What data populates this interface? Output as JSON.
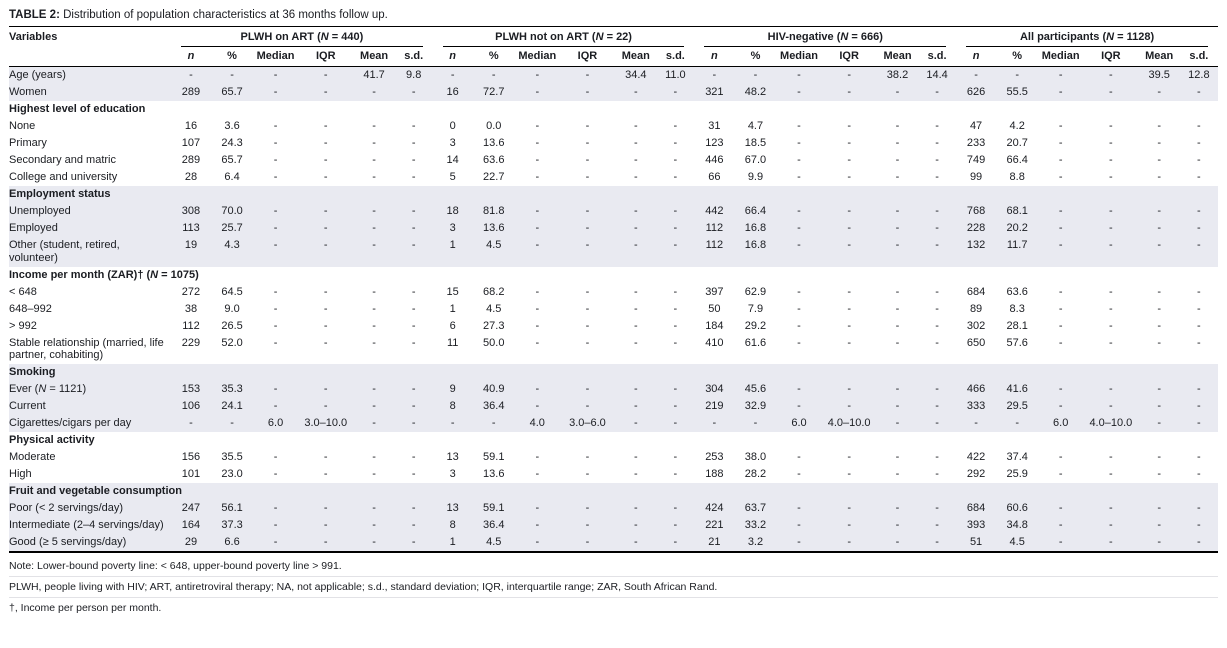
{
  "title_label": "TABLE 2:",
  "title_text": " Distribution of population characteristics at 36 months follow up.",
  "table": {
    "variables_header": "Variables",
    "groups": [
      "PLWH on ART (N = 440)",
      "PLWH not on ART (N = 22)",
      "HIV-negative (N = 666)",
      "All participants (N = 1128)"
    ],
    "subheaders": [
      "n",
      "%",
      "Median",
      "IQR",
      "Mean",
      "s.d."
    ],
    "rows": [
      {
        "type": "data",
        "shaded": true,
        "label": "Age (years)",
        "values": [
          "-",
          "-",
          "-",
          "-",
          "41.7",
          "9.8",
          "-",
          "-",
          "-",
          "-",
          "34.4",
          "11.0",
          "-",
          "-",
          "-",
          "-",
          "38.2",
          "14.4",
          "-",
          "-",
          "-",
          "-",
          "39.5",
          "12.8"
        ]
      },
      {
        "type": "data",
        "shaded": true,
        "label": "Women",
        "values": [
          "289",
          "65.7",
          "-",
          "-",
          "-",
          "-",
          "16",
          "72.7",
          "-",
          "-",
          "-",
          "-",
          "321",
          "48.2",
          "-",
          "-",
          "-",
          "-",
          "626",
          "55.5",
          "-",
          "-",
          "-",
          "-"
        ]
      },
      {
        "type": "section",
        "shaded": false,
        "label": "Highest level of education"
      },
      {
        "type": "data",
        "shaded": false,
        "label": "None",
        "values": [
          "16",
          "3.6",
          "-",
          "-",
          "-",
          "-",
          "0",
          "0.0",
          "-",
          "-",
          "-",
          "-",
          "31",
          "4.7",
          "-",
          "-",
          "-",
          "-",
          "47",
          "4.2",
          "-",
          "-",
          "-",
          "-"
        ]
      },
      {
        "type": "data",
        "shaded": false,
        "label": "Primary",
        "values": [
          "107",
          "24.3",
          "-",
          "-",
          "-",
          "-",
          "3",
          "13.6",
          "-",
          "-",
          "-",
          "-",
          "123",
          "18.5",
          "-",
          "-",
          "-",
          "-",
          "233",
          "20.7",
          "-",
          "-",
          "-",
          "-"
        ]
      },
      {
        "type": "data",
        "shaded": false,
        "label": "Secondary and matric",
        "values": [
          "289",
          "65.7",
          "-",
          "-",
          "-",
          "-",
          "14",
          "63.6",
          "-",
          "-",
          "-",
          "-",
          "446",
          "67.0",
          "-",
          "-",
          "-",
          "-",
          "749",
          "66.4",
          "-",
          "-",
          "-",
          "-"
        ]
      },
      {
        "type": "data",
        "shaded": false,
        "label": "College and university",
        "values": [
          "28",
          "6.4",
          "-",
          "-",
          "-",
          "-",
          "5",
          "22.7",
          "-",
          "-",
          "-",
          "-",
          "66",
          "9.9",
          "-",
          "-",
          "-",
          "-",
          "99",
          "8.8",
          "-",
          "-",
          "-",
          "-"
        ]
      },
      {
        "type": "section",
        "shaded": true,
        "label": "Employment status"
      },
      {
        "type": "data",
        "shaded": true,
        "label": "Unemployed",
        "values": [
          "308",
          "70.0",
          "-",
          "-",
          "-",
          "-",
          "18",
          "81.8",
          "-",
          "-",
          "-",
          "-",
          "442",
          "66.4",
          "-",
          "-",
          "-",
          "-",
          "768",
          "68.1",
          "-",
          "-",
          "-",
          "-"
        ]
      },
      {
        "type": "data",
        "shaded": true,
        "label": "Employed",
        "values": [
          "113",
          "25.7",
          "-",
          "-",
          "-",
          "-",
          "3",
          "13.6",
          "-",
          "-",
          "-",
          "-",
          "112",
          "16.8",
          "-",
          "-",
          "-",
          "-",
          "228",
          "20.2",
          "-",
          "-",
          "-",
          "-"
        ]
      },
      {
        "type": "data",
        "shaded": true,
        "label": "Other (student, retired, volunteer)",
        "values": [
          "19",
          "4.3",
          "-",
          "-",
          "-",
          "-",
          "1",
          "4.5",
          "-",
          "-",
          "-",
          "-",
          "112",
          "16.8",
          "-",
          "-",
          "-",
          "-",
          "132",
          "11.7",
          "-",
          "-",
          "-",
          "-"
        ]
      },
      {
        "type": "section",
        "shaded": false,
        "label": "Income per month (ZAR)† (N = 1075)"
      },
      {
        "type": "data",
        "shaded": false,
        "label": "< 648",
        "values": [
          "272",
          "64.5",
          "-",
          "-",
          "-",
          "-",
          "15",
          "68.2",
          "-",
          "-",
          "-",
          "-",
          "397",
          "62.9",
          "-",
          "-",
          "-",
          "-",
          "684",
          "63.6",
          "-",
          "-",
          "-",
          "-"
        ]
      },
      {
        "type": "data",
        "shaded": false,
        "label": "648–992",
        "values": [
          "38",
          "9.0",
          "-",
          "-",
          "-",
          "-",
          "1",
          "4.5",
          "-",
          "-",
          "-",
          "-",
          "50",
          "7.9",
          "-",
          "-",
          "-",
          "-",
          "89",
          "8.3",
          "-",
          "-",
          "-",
          "-"
        ]
      },
      {
        "type": "data",
        "shaded": false,
        "label": "> 992",
        "values": [
          "112",
          "26.5",
          "-",
          "-",
          "-",
          "-",
          "6",
          "27.3",
          "-",
          "-",
          "-",
          "-",
          "184",
          "29.2",
          "-",
          "-",
          "-",
          "-",
          "302",
          "28.1",
          "-",
          "-",
          "-",
          "-"
        ]
      },
      {
        "type": "data",
        "shaded": false,
        "label": "Stable relationship (married, life partner, cohabiting)",
        "values": [
          "229",
          "52.0",
          "-",
          "-",
          "-",
          "-",
          "11",
          "50.0",
          "-",
          "-",
          "-",
          "-",
          "410",
          "61.6",
          "-",
          "-",
          "-",
          "-",
          "650",
          "57.6",
          "-",
          "-",
          "-",
          "-"
        ]
      },
      {
        "type": "section",
        "shaded": true,
        "label": "Smoking"
      },
      {
        "type": "data",
        "shaded": true,
        "label": "Ever (N = 1121)",
        "values": [
          "153",
          "35.3",
          "-",
          "-",
          "-",
          "-",
          "9",
          "40.9",
          "-",
          "-",
          "-",
          "-",
          "304",
          "45.6",
          "-",
          "-",
          "-",
          "-",
          "466",
          "41.6",
          "-",
          "-",
          "-",
          "-"
        ]
      },
      {
        "type": "data",
        "shaded": true,
        "label": "Current",
        "values": [
          "106",
          "24.1",
          "-",
          "-",
          "-",
          "-",
          "8",
          "36.4",
          "-",
          "-",
          "-",
          "-",
          "219",
          "32.9",
          "-",
          "-",
          "-",
          "-",
          "333",
          "29.5",
          "-",
          "-",
          "-",
          "-"
        ]
      },
      {
        "type": "data",
        "shaded": true,
        "label": "Cigarettes/cigars per day",
        "values": [
          "-",
          "-",
          "6.0",
          "3.0–10.0",
          "-",
          "-",
          "-",
          "-",
          "4.0",
          "3.0–6.0",
          "-",
          "-",
          "-",
          "-",
          "6.0",
          "4.0–10.0",
          "-",
          "-",
          "-",
          "-",
          "6.0",
          "4.0–10.0",
          "-",
          "-"
        ]
      },
      {
        "type": "section",
        "shaded": false,
        "label": "Physical activity"
      },
      {
        "type": "data",
        "shaded": false,
        "label": "Moderate",
        "values": [
          "156",
          "35.5",
          "-",
          "-",
          "-",
          "-",
          "13",
          "59.1",
          "-",
          "-",
          "-",
          "-",
          "253",
          "38.0",
          "-",
          "-",
          "-",
          "-",
          "422",
          "37.4",
          "-",
          "-",
          "-",
          "-"
        ]
      },
      {
        "type": "data",
        "shaded": false,
        "label": "High",
        "values": [
          "101",
          "23.0",
          "-",
          "-",
          "-",
          "-",
          "3",
          "13.6",
          "-",
          "-",
          "-",
          "-",
          "188",
          "28.2",
          "-",
          "-",
          "-",
          "-",
          "292",
          "25.9",
          "-",
          "-",
          "-",
          "-"
        ]
      },
      {
        "type": "section",
        "shaded": true,
        "label": "Fruit and vegetable consumption"
      },
      {
        "type": "data",
        "shaded": true,
        "label": "Poor (< 2 servings/day)",
        "values": [
          "247",
          "56.1",
          "-",
          "-",
          "-",
          "-",
          "13",
          "59.1",
          "-",
          "-",
          "-",
          "-",
          "424",
          "63.7",
          "-",
          "-",
          "-",
          "-",
          "684",
          "60.6",
          "-",
          "-",
          "-",
          "-"
        ]
      },
      {
        "type": "data",
        "shaded": true,
        "label": "Intermediate (2–4 servings/day)",
        "values": [
          "164",
          "37.3",
          "-",
          "-",
          "-",
          "-",
          "8",
          "36.4",
          "-",
          "-",
          "-",
          "-",
          "221",
          "33.2",
          "-",
          "-",
          "-",
          "-",
          "393",
          "34.8",
          "-",
          "-",
          "-",
          "-"
        ]
      },
      {
        "type": "data",
        "shaded": true,
        "label": "Good (≥ 5 servings/day)",
        "values": [
          "29",
          "6.6",
          "-",
          "-",
          "-",
          "-",
          "1",
          "4.5",
          "-",
          "-",
          "-",
          "-",
          "21",
          "3.2",
          "-",
          "-",
          "-",
          "-",
          "51",
          "4.5",
          "-",
          "-",
          "-",
          "-"
        ]
      }
    ]
  },
  "notes": [
    "Note: Lower-bound poverty line: < 648, upper-bound poverty line > 991.",
    "PLWH, people living with HIV; ART, antiretroviral therapy; NA, not applicable; s.d., standard deviation; IQR, interquartile range; ZAR, South African Rand.",
    "†, Income per person per month."
  ]
}
